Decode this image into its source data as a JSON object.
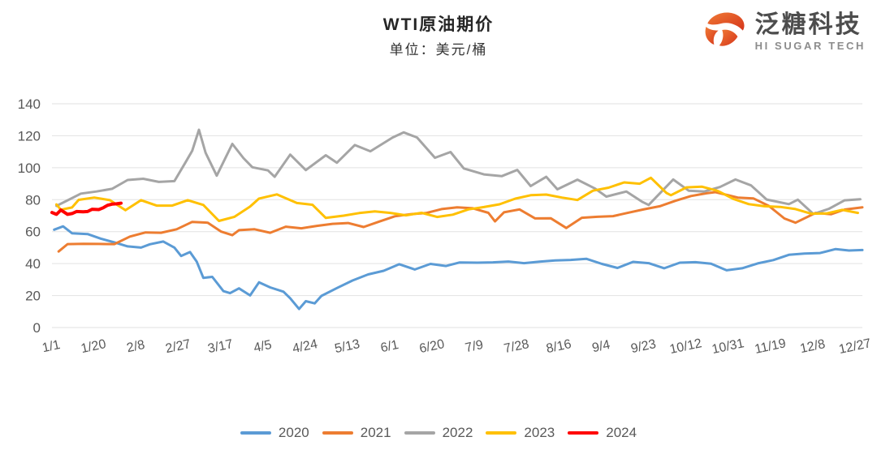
{
  "header": {
    "title": "WTI原油期价",
    "subtitle": "单位：美元/桶"
  },
  "logo": {
    "brand": "泛糖科技",
    "tagline": "HI SUGAR TECH",
    "icon": "sugar-swirl-icon",
    "icon_color_start": "#F07A35",
    "icon_color_end": "#D5351B",
    "brand_color": "#4d4d4d",
    "tagline_color": "#8c8c8c"
  },
  "chart_data": {
    "type": "line",
    "title": "WTI原油期价",
    "unit_label": "单位：美元/桶",
    "xlabel": "",
    "ylabel": "",
    "ylim": [
      0,
      140
    ],
    "yticks": [
      0,
      20,
      40,
      60,
      80,
      100,
      120,
      140
    ],
    "x_unit": "day-of-year",
    "x_range_days": [
      1,
      365
    ],
    "x_tick_days": [
      1,
      20,
      39,
      58,
      77,
      96,
      115,
      134,
      153,
      172,
      191,
      210,
      229,
      248,
      267,
      286,
      305,
      324,
      343,
      362
    ],
    "x_tick_labels": [
      "1/1",
      "1/20",
      "2/8",
      "2/27",
      "3/17",
      "4/5",
      "4/24",
      "5/13",
      "6/1",
      "6/20",
      "7/9",
      "7/28",
      "8/16",
      "9/4",
      "9/23",
      "10/12",
      "10/31",
      "11/19",
      "12/8",
      "12/27"
    ],
    "grid": "horizontal",
    "grid_color": "#e2e2e2",
    "legend_position": "bottom",
    "series": [
      {
        "name": "2020",
        "color": "#5B9BD5",
        "emphasis": false,
        "points": [
          [
            2,
            61.2
          ],
          [
            6,
            63.3
          ],
          [
            10,
            59.0
          ],
          [
            17,
            58.5
          ],
          [
            23,
            55.6
          ],
          [
            29,
            53.3
          ],
          [
            35,
            50.8
          ],
          [
            41,
            50.0
          ],
          [
            45,
            52.1
          ],
          [
            51,
            53.8
          ],
          [
            56,
            50.0
          ],
          [
            59,
            44.8
          ],
          [
            63,
            47.2
          ],
          [
            66,
            41.3
          ],
          [
            69,
            31.1
          ],
          [
            73,
            31.7
          ],
          [
            78,
            22.8
          ],
          [
            81,
            21.5
          ],
          [
            85,
            24.5
          ],
          [
            90,
            20.1
          ],
          [
            94,
            28.3
          ],
          [
            99,
            25.1
          ],
          [
            105,
            22.4
          ],
          [
            108,
            18.3
          ],
          [
            112,
            11.6
          ],
          [
            115,
            16.5
          ],
          [
            119,
            15.1
          ],
          [
            122,
            19.8
          ],
          [
            129,
            24.7
          ],
          [
            136,
            29.4
          ],
          [
            143,
            33.2
          ],
          [
            150,
            35.5
          ],
          [
            157,
            39.6
          ],
          [
            164,
            36.3
          ],
          [
            171,
            39.8
          ],
          [
            178,
            38.5
          ],
          [
            184,
            40.7
          ],
          [
            192,
            40.6
          ],
          [
            199,
            40.8
          ],
          [
            206,
            41.3
          ],
          [
            213,
            40.3
          ],
          [
            220,
            41.2
          ],
          [
            227,
            42.0
          ],
          [
            234,
            42.3
          ],
          [
            241,
            43.0
          ],
          [
            248,
            39.8
          ],
          [
            255,
            37.3
          ],
          [
            262,
            41.1
          ],
          [
            269,
            40.3
          ],
          [
            276,
            37.1
          ],
          [
            283,
            40.6
          ],
          [
            290,
            40.9
          ],
          [
            297,
            39.9
          ],
          [
            304,
            35.8
          ],
          [
            311,
            37.1
          ],
          [
            318,
            40.1
          ],
          [
            325,
            42.2
          ],
          [
            332,
            45.5
          ],
          [
            339,
            46.3
          ],
          [
            346,
            46.6
          ],
          [
            353,
            49.1
          ],
          [
            359,
            48.2
          ],
          [
            365,
            48.5
          ]
        ]
      },
      {
        "name": "2021",
        "color": "#ED7D31",
        "emphasis": false,
        "points": [
          [
            4,
            47.6
          ],
          [
            8,
            52.2
          ],
          [
            15,
            52.4
          ],
          [
            22,
            52.3
          ],
          [
            29,
            52.2
          ],
          [
            36,
            56.9
          ],
          [
            43,
            59.5
          ],
          [
            50,
            59.3
          ],
          [
            57,
            61.5
          ],
          [
            64,
            66.1
          ],
          [
            71,
            65.6
          ],
          [
            77,
            60.0
          ],
          [
            82,
            57.8
          ],
          [
            85,
            60.9
          ],
          [
            92,
            61.5
          ],
          [
            99,
            59.3
          ],
          [
            106,
            63.1
          ],
          [
            113,
            62.1
          ],
          [
            120,
            63.6
          ],
          [
            127,
            64.9
          ],
          [
            134,
            65.4
          ],
          [
            141,
            62.9
          ],
          [
            148,
            66.3
          ],
          [
            155,
            69.6
          ],
          [
            162,
            70.9
          ],
          [
            169,
            71.6
          ],
          [
            176,
            74.1
          ],
          [
            183,
            75.2
          ],
          [
            190,
            74.6
          ],
          [
            197,
            71.8
          ],
          [
            200,
            66.4
          ],
          [
            204,
            72.1
          ],
          [
            211,
            73.9
          ],
          [
            218,
            68.3
          ],
          [
            225,
            68.4
          ],
          [
            232,
            62.3
          ],
          [
            239,
            68.7
          ],
          [
            246,
            69.3
          ],
          [
            253,
            69.7
          ],
          [
            260,
            71.9
          ],
          [
            267,
            74.0
          ],
          [
            274,
            75.9
          ],
          [
            281,
            79.3
          ],
          [
            288,
            82.3
          ],
          [
            295,
            84.0
          ],
          [
            299,
            84.7
          ],
          [
            309,
            81.3
          ],
          [
            316,
            80.8
          ],
          [
            323,
            76.1
          ],
          [
            330,
            68.2
          ],
          [
            335,
            65.6
          ],
          [
            344,
            71.7
          ],
          [
            351,
            70.9
          ],
          [
            357,
            73.8
          ],
          [
            365,
            75.2
          ]
        ]
      },
      {
        "name": "2022",
        "color": "#A5A5A5",
        "emphasis": false,
        "points": [
          [
            3,
            76.1
          ],
          [
            7,
            78.9
          ],
          [
            14,
            83.8
          ],
          [
            21,
            85.1
          ],
          [
            28,
            86.8
          ],
          [
            35,
            92.3
          ],
          [
            42,
            93.1
          ],
          [
            49,
            91.1
          ],
          [
            56,
            91.6
          ],
          [
            61,
            103.4
          ],
          [
            64,
            110.6
          ],
          [
            67,
            123.7
          ],
          [
            70,
            109.3
          ],
          [
            75,
            95.0
          ],
          [
            82,
            114.9
          ],
          [
            87,
            106.0
          ],
          [
            91,
            100.3
          ],
          [
            98,
            98.3
          ],
          [
            101,
            94.3
          ],
          [
            108,
            108.2
          ],
          [
            115,
            98.5
          ],
          [
            124,
            107.8
          ],
          [
            129,
            103.1
          ],
          [
            137,
            114.2
          ],
          [
            144,
            110.3
          ],
          [
            154,
            118.9
          ],
          [
            159,
            122.1
          ],
          [
            165,
            118.9
          ],
          [
            173,
            106.2
          ],
          [
            180,
            109.8
          ],
          [
            186,
            99.5
          ],
          [
            195,
            95.8
          ],
          [
            203,
            94.7
          ],
          [
            210,
            98.6
          ],
          [
            216,
            88.5
          ],
          [
            223,
            94.3
          ],
          [
            228,
            86.5
          ],
          [
            237,
            92.5
          ],
          [
            245,
            86.9
          ],
          [
            250,
            81.9
          ],
          [
            259,
            85.1
          ],
          [
            266,
            78.7
          ],
          [
            269,
            76.7
          ],
          [
            280,
            92.6
          ],
          [
            287,
            85.6
          ],
          [
            294,
            85.1
          ],
          [
            301,
            87.9
          ],
          [
            308,
            92.6
          ],
          [
            315,
            88.9
          ],
          [
            322,
            80.1
          ],
          [
            332,
            77.2
          ],
          [
            336,
            80.0
          ],
          [
            343,
            71.0
          ],
          [
            350,
            74.3
          ],
          [
            357,
            79.6
          ],
          [
            364,
            80.3
          ]
        ]
      },
      {
        "name": "2023",
        "color": "#FFC000",
        "emphasis": false,
        "points": [
          [
            3,
            77.0
          ],
          [
            5,
            73.7
          ],
          [
            10,
            75.1
          ],
          [
            13,
            79.9
          ],
          [
            20,
            81.3
          ],
          [
            27,
            79.7
          ],
          [
            34,
            73.4
          ],
          [
            41,
            79.7
          ],
          [
            48,
            76.3
          ],
          [
            55,
            76.3
          ],
          [
            62,
            79.7
          ],
          [
            69,
            76.7
          ],
          [
            76,
            66.7
          ],
          [
            83,
            69.3
          ],
          [
            90,
            75.7
          ],
          [
            94,
            80.7
          ],
          [
            102,
            83.3
          ],
          [
            111,
            77.9
          ],
          [
            118,
            76.8
          ],
          [
            124,
            68.6
          ],
          [
            132,
            70.0
          ],
          [
            139,
            71.6
          ],
          [
            146,
            72.7
          ],
          [
            153,
            71.7
          ],
          [
            160,
            70.2
          ],
          [
            167,
            71.8
          ],
          [
            174,
            69.2
          ],
          [
            181,
            70.6
          ],
          [
            188,
            73.9
          ],
          [
            195,
            75.4
          ],
          [
            202,
            77.1
          ],
          [
            209,
            80.6
          ],
          [
            216,
            82.8
          ],
          [
            223,
            83.2
          ],
          [
            230,
            81.3
          ],
          [
            237,
            79.8
          ],
          [
            244,
            85.6
          ],
          [
            251,
            87.5
          ],
          [
            258,
            90.8
          ],
          [
            265,
            90.0
          ],
          [
            270,
            93.7
          ],
          [
            277,
            84.2
          ],
          [
            279,
            82.8
          ],
          [
            286,
            87.7
          ],
          [
            293,
            88.1
          ],
          [
            300,
            85.5
          ],
          [
            307,
            80.5
          ],
          [
            314,
            77.2
          ],
          [
            321,
            75.9
          ],
          [
            328,
            75.5
          ],
          [
            335,
            74.1
          ],
          [
            342,
            71.2
          ],
          [
            349,
            71.4
          ],
          [
            356,
            73.6
          ],
          [
            363,
            71.7
          ]
        ]
      },
      {
        "name": "2024",
        "color": "#FF0000",
        "emphasis": true,
        "points": [
          [
            1,
            72.0
          ],
          [
            3,
            70.8
          ],
          [
            5,
            73.5
          ],
          [
            8,
            70.8
          ],
          [
            10,
            71.3
          ],
          [
            12,
            72.6
          ],
          [
            15,
            72.4
          ],
          [
            17,
            72.6
          ],
          [
            19,
            74.0
          ],
          [
            22,
            73.8
          ],
          [
            24,
            74.9
          ],
          [
            26,
            76.5
          ],
          [
            28,
            77.2
          ],
          [
            30,
            77.4
          ],
          [
            32,
            77.8
          ]
        ]
      }
    ]
  }
}
